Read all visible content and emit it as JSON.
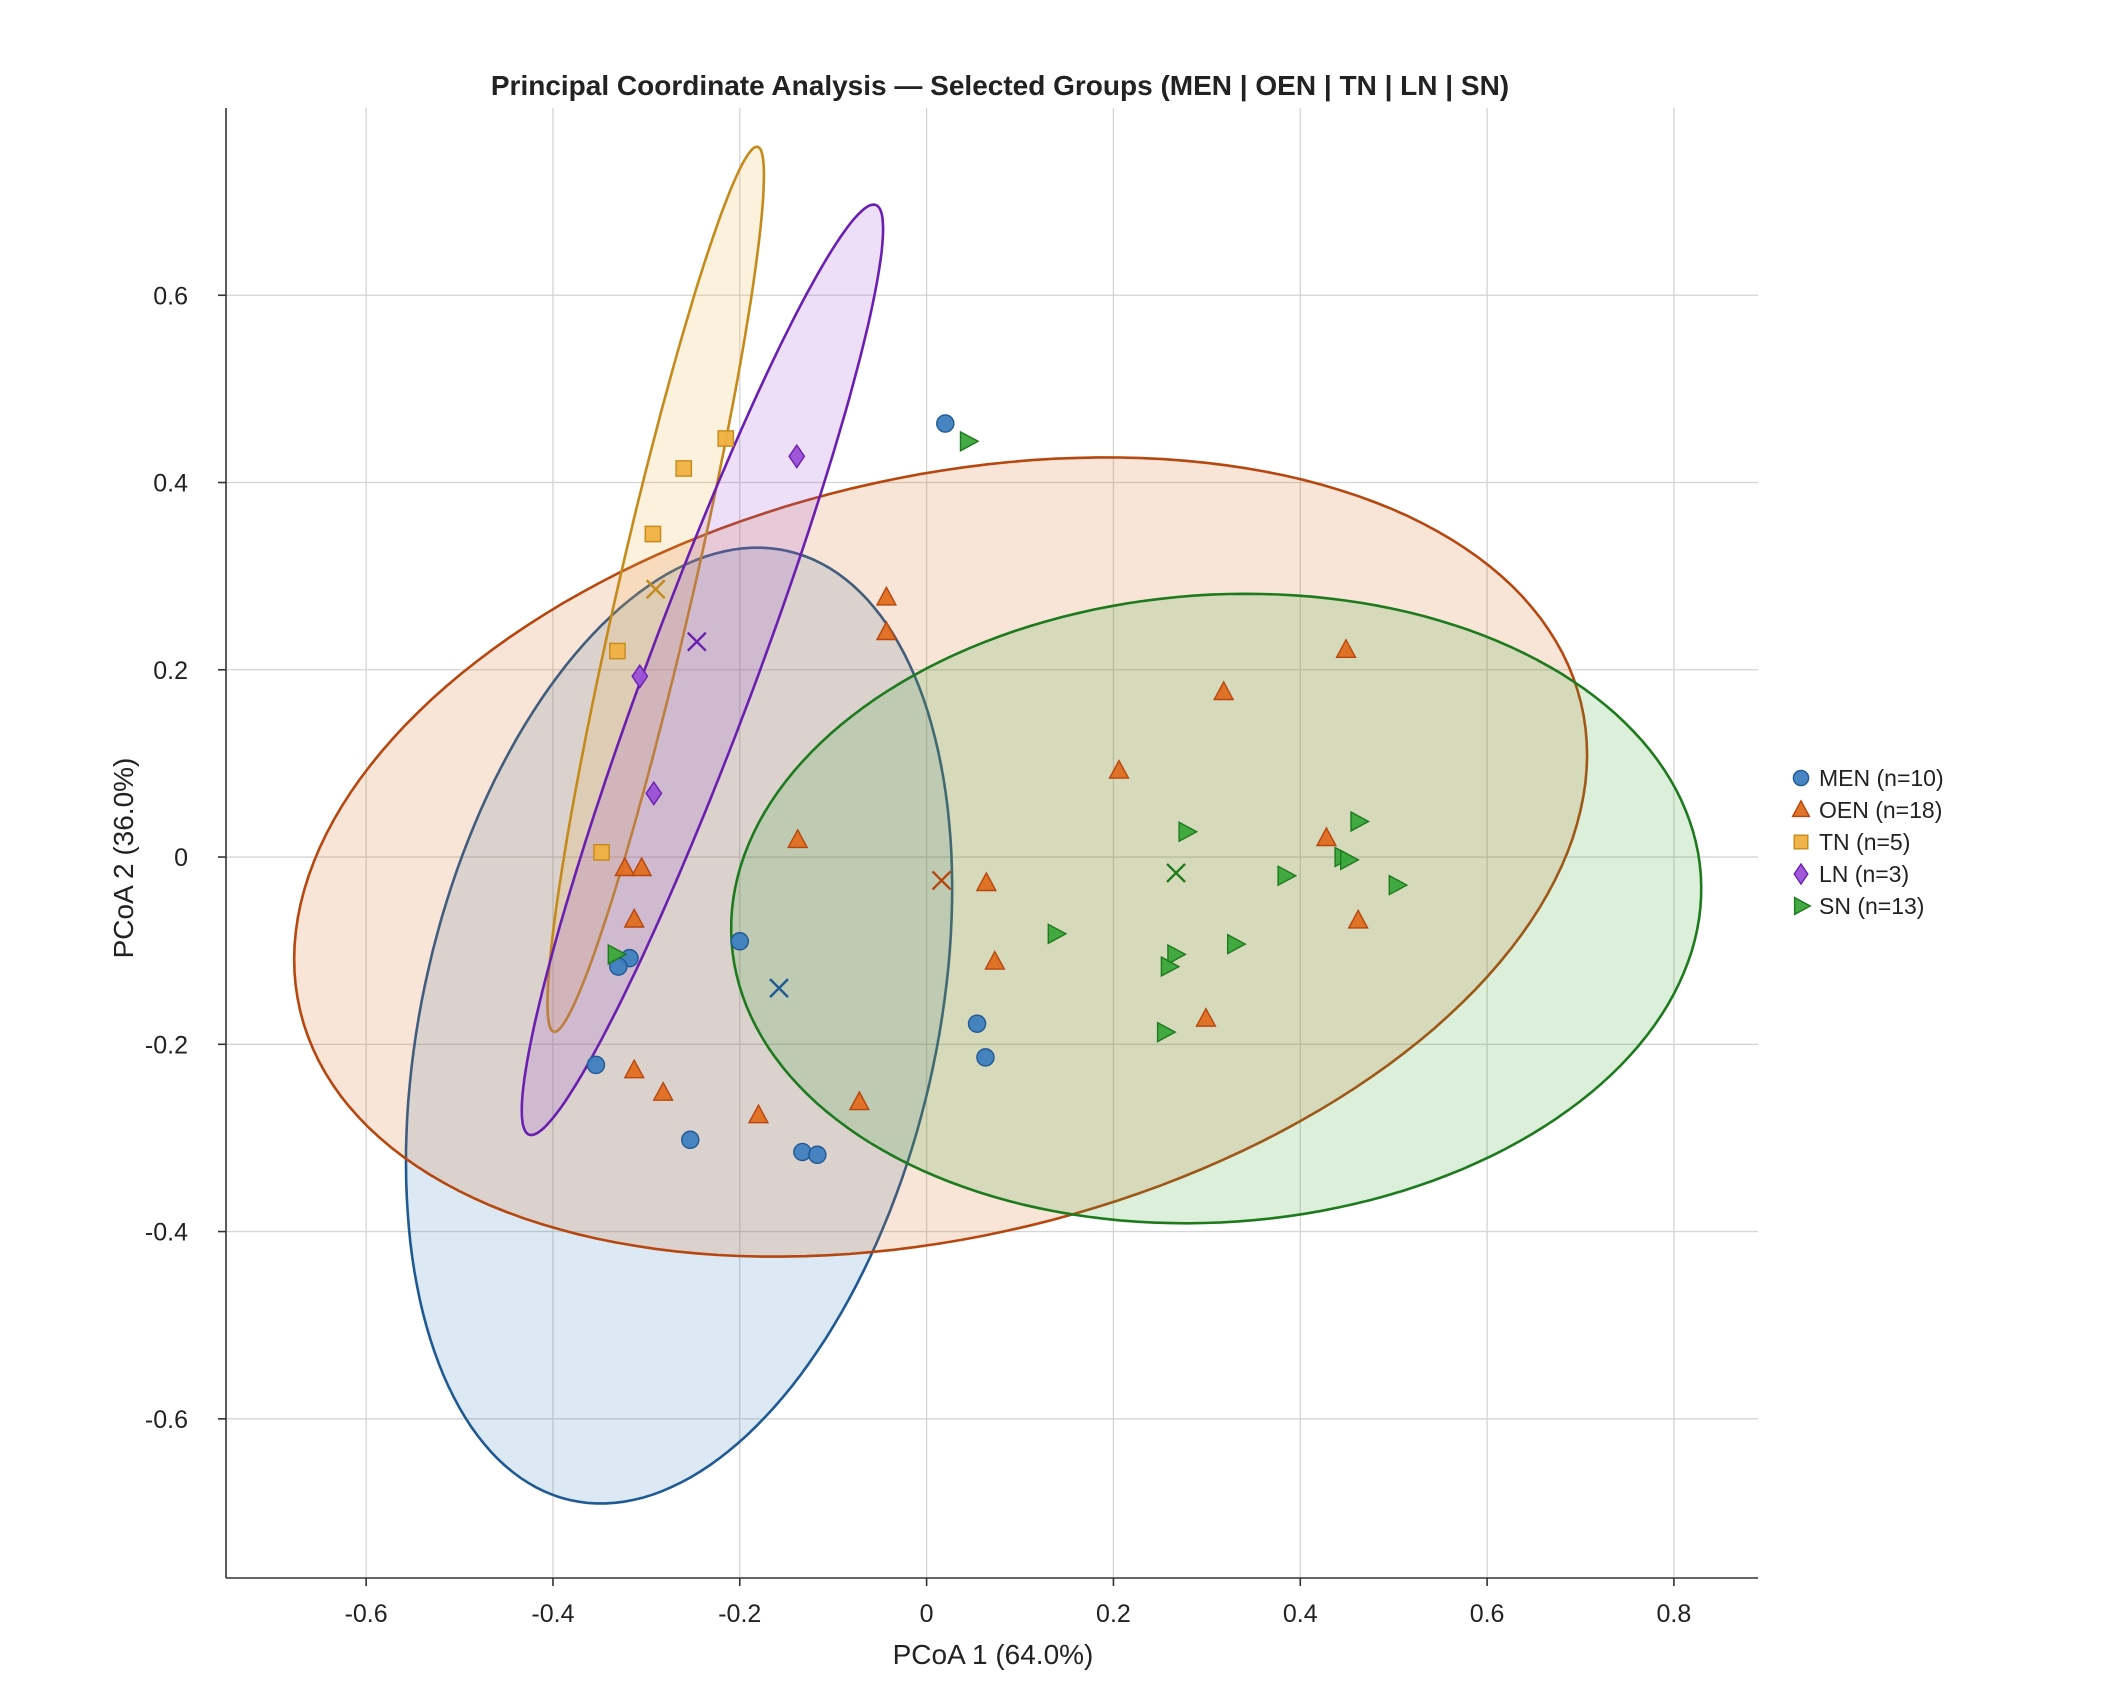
{
  "chart_data": {
    "type": "scatter",
    "title": "Principal Coordinate Analysis — Selected Groups (MEN | OEN | TN | LN | SN)",
    "xlabel": "PCoA 1 (64.0%)",
    "ylabel": "PCoA 2 (36.0%)",
    "xlim": [
      -0.75,
      0.89
    ],
    "ylim": [
      -0.77,
      0.8
    ],
    "xticks": [
      -0.6,
      -0.4,
      -0.2,
      0,
      0.2,
      0.4,
      0.6,
      0.8
    ],
    "xtick_labels": [
      "-0.6",
      "-0.4",
      "-0.2",
      "0",
      "0.2",
      "0.4",
      "0.6",
      "0.8"
    ],
    "yticks": [
      -0.6,
      -0.4,
      -0.2,
      0,
      0.2,
      0.4,
      0.6
    ],
    "ytick_labels": [
      "-0.6",
      "-0.4",
      "-0.2",
      "0",
      "0.2",
      "0.4",
      "0.6"
    ],
    "grid": true,
    "legend_position": "right",
    "series": [
      {
        "name": "MEN (n=10)",
        "marker": "circle",
        "color": "#3d7ebf",
        "edge": "#1f5a93",
        "points": [
          [
            0.02,
            0.463
          ],
          [
            -0.2,
            -0.09
          ],
          [
            -0.318,
            -0.108
          ],
          [
            -0.33,
            -0.117
          ],
          [
            -0.354,
            -0.222
          ],
          [
            -0.253,
            -0.302
          ],
          [
            -0.133,
            -0.315
          ],
          [
            -0.117,
            -0.318
          ],
          [
            0.054,
            -0.178
          ],
          [
            0.063,
            -0.214
          ]
        ],
        "centroid": [
          -0.158,
          -0.14
        ],
        "ellipse": {
          "cx": -0.265,
          "cy": -0.18,
          "rx": 0.52,
          "ry": 0.275,
          "angle_deg": 77
        }
      },
      {
        "name": "OEN (n=18)",
        "marker": "triangle-up",
        "color": "#e06d1f",
        "edge": "#b5470f",
        "points": [
          [
            -0.043,
            0.277
          ],
          [
            -0.043,
            0.24
          ],
          [
            -0.138,
            0.018
          ],
          [
            -0.323,
            -0.012
          ],
          [
            -0.305,
            -0.012
          ],
          [
            -0.313,
            -0.067
          ],
          [
            -0.313,
            -0.228
          ],
          [
            -0.282,
            -0.252
          ],
          [
            -0.18,
            -0.276
          ],
          [
            -0.072,
            -0.262
          ],
          [
            0.064,
            -0.028
          ],
          [
            0.073,
            -0.112
          ],
          [
            0.206,
            0.092
          ],
          [
            0.318,
            0.176
          ],
          [
            0.449,
            0.221
          ],
          [
            0.428,
            0.02
          ],
          [
            0.462,
            -0.068
          ],
          [
            0.299,
            -0.173
          ]
        ],
        "centroid": [
          0.016,
          -0.025
        ],
        "ellipse": {
          "cx": 0.015,
          "cy": 0.0,
          "rx": 0.705,
          "ry": 0.405,
          "angle_deg": 13.5
        }
      },
      {
        "name": "TN (n=5)",
        "marker": "square",
        "color": "#f0b040",
        "edge": "#c48a1c",
        "points": [
          [
            -0.215,
            0.447
          ],
          [
            -0.26,
            0.415
          ],
          [
            -0.293,
            0.345
          ],
          [
            -0.331,
            0.22
          ],
          [
            -0.348,
            0.005
          ]
        ],
        "centroid": [
          -0.29,
          0.286
        ],
        "ellipse": {
          "cx": -0.29,
          "cy": 0.286,
          "rx": 0.485,
          "ry": 0.04,
          "angle_deg": 77
        }
      },
      {
        "name": "LN (n=3)",
        "marker": "diamond",
        "color": "#9a4fd6",
        "edge": "#6a1fb0",
        "points": [
          [
            -0.139,
            0.428
          ],
          [
            -0.307,
            0.193
          ],
          [
            -0.292,
            0.068
          ]
        ],
        "centroid": [
          -0.246,
          0.23
        ],
        "ellipse": {
          "cx": -0.24,
          "cy": 0.2,
          "rx": 0.53,
          "ry": 0.058,
          "angle_deg": 69.5
        }
      },
      {
        "name": "SN (n=13)",
        "marker": "triangle-right",
        "color": "#3aa63a",
        "edge": "#1d7a1d",
        "points": [
          [
            0.044,
            0.444
          ],
          [
            0.138,
            -0.082
          ],
          [
            0.278,
            0.027
          ],
          [
            0.266,
            -0.104
          ],
          [
            0.259,
            -0.117
          ],
          [
            0.255,
            -0.187
          ],
          [
            0.33,
            -0.093
          ],
          [
            0.384,
            -0.02
          ],
          [
            0.445,
            0.0
          ],
          [
            0.451,
            -0.003
          ],
          [
            0.462,
            0.038
          ],
          [
            0.503,
            -0.03
          ],
          [
            -0.333,
            -0.104
          ]
        ],
        "centroid": [
          0.267,
          -0.017
        ],
        "ellipse": {
          "cx": 0.31,
          "cy": -0.055,
          "rx": 0.52,
          "ry": 0.335,
          "angle_deg": 4
        }
      }
    ]
  }
}
